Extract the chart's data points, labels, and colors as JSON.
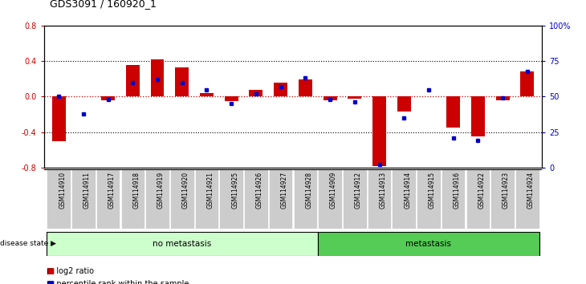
{
  "title": "GDS3091 / 160920_1",
  "samples": [
    "GSM114910",
    "GSM114911",
    "GSM114917",
    "GSM114918",
    "GSM114919",
    "GSM114920",
    "GSM114921",
    "GSM114925",
    "GSM114926",
    "GSM114927",
    "GSM114928",
    "GSM114909",
    "GSM114912",
    "GSM114913",
    "GSM114914",
    "GSM114915",
    "GSM114916",
    "GSM114922",
    "GSM114923",
    "GSM114924"
  ],
  "log2_ratio": [
    -0.5,
    0.0,
    -0.04,
    0.36,
    0.42,
    0.33,
    0.04,
    -0.05,
    0.08,
    0.16,
    0.19,
    -0.04,
    -0.02,
    -0.78,
    -0.17,
    0.0,
    -0.35,
    -0.45,
    -0.04,
    0.28
  ],
  "percentile_rank": [
    50,
    38,
    48,
    60,
    62,
    60,
    55,
    45,
    52,
    57,
    63,
    48,
    46,
    2,
    35,
    55,
    21,
    19,
    49,
    68
  ],
  "no_metastasis_count": 11,
  "metastasis_count": 9,
  "ylim_left": [
    -0.8,
    0.8
  ],
  "ylim_right": [
    0,
    100
  ],
  "yticks_left": [
    -0.8,
    -0.4,
    0.0,
    0.4,
    0.8
  ],
  "yticks_right": [
    0,
    25,
    50,
    75,
    100
  ],
  "ytick_labels_right": [
    "0",
    "25",
    "50",
    "75",
    "100%"
  ],
  "bar_color_red": "#cc0000",
  "bar_color_blue": "#0000cc",
  "no_meta_color": "#ccffcc",
  "meta_color": "#55cc55",
  "tick_label_bg": "#cccccc",
  "bar_width": 0.55
}
